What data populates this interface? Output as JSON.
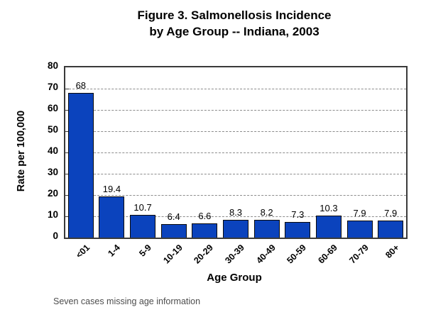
{
  "title_line1": "Figure 3. Salmonellosis Incidence",
  "title_line2": "by Age Group -- Indiana, 2003",
  "footnote": "Seven cases missing age information",
  "chart_data": {
    "type": "bar",
    "title": "Figure 3. Salmonellosis Incidence by Age Group -- Indiana, 2003",
    "categories": [
      "<01",
      "1-4",
      "5-9",
      "10-19",
      "20-29",
      "30-39",
      "40-49",
      "50-59",
      "60-69",
      "70-79",
      "80+"
    ],
    "values": [
      68,
      19.4,
      10.7,
      6.4,
      6.6,
      8.3,
      8.2,
      7.3,
      10.3,
      7.9,
      7.9
    ],
    "data_labels": [
      "68",
      "19.4",
      "10.7",
      "6.4",
      "6.6",
      "8.3",
      "8.2",
      "7.3",
      "10.3",
      "7.9",
      "7.9"
    ],
    "xlabel": "Age Group",
    "ylabel": "Rate per 100,000",
    "ylim": [
      0,
      80
    ],
    "yticks": [
      0,
      10,
      20,
      30,
      40,
      50,
      60,
      70,
      80
    ],
    "grid": "horizontal-dashed",
    "legend": "none",
    "bar_color": "#0b43bd",
    "bar_border_color": "#0a0a0a",
    "gridline_color": "#8c8c8c"
  }
}
